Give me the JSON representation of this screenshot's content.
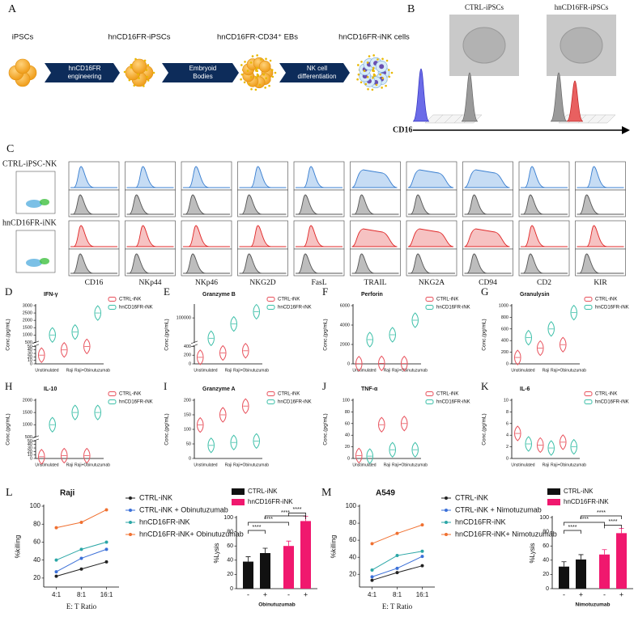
{
  "figure": {
    "A": {
      "label": "A",
      "stages": [
        "iPSCs",
        "hnCD16FR-iPSCs",
        "hnCD16FR-CD34⁺ EBs",
        "hnCD16FR-iNK cells"
      ],
      "steps": [
        [
          "hnCD16FR",
          "engineering"
        ],
        [
          "Embryoid",
          "Bodies"
        ],
        [
          "NK cell",
          "differentiation"
        ]
      ]
    },
    "B": {
      "label": "B",
      "images": [
        "CTRL-iPSCs",
        "hnCD16FR-iPSCs"
      ],
      "axis": "CD16"
    },
    "C": {
      "label": "C",
      "rows": [
        "CTRL-iPSC-NK",
        "hnCD16FR-iNK"
      ],
      "markers": [
        "CD16",
        "NKp44",
        "NKp46",
        "NKG2D",
        "FasL",
        "TRAIL",
        "NKG2A",
        "CD94",
        "CD2",
        "KIR"
      ]
    }
  },
  "chart_data": [
    {
      "type": "violin",
      "label": "D",
      "title": "IFN-γ",
      "ylabel": "Conc.(pg/mL)",
      "categories": [
        "Unstimulated",
        "Raji",
        "Raji+Obinutuzumab"
      ],
      "series": [
        {
          "name": "CTRL-iNK",
          "color": "#e8505b",
          "values": [
            25,
            40,
            50
          ]
        },
        {
          "name": "hnCD16FR-iNK",
          "color": "#3cbfa8",
          "values": [
            1000,
            1200,
            2500
          ]
        }
      ],
      "ylim": [
        0,
        3000
      ],
      "ybreak": [
        50,
        500
      ],
      "yticks": [
        0,
        10,
        20,
        30,
        40,
        50,
        500,
        1000,
        1500,
        2000,
        2500,
        3000
      ]
    },
    {
      "type": "violin",
      "label": "E",
      "title": "Granzyme B",
      "ylabel": "Conc.(pg/mL)",
      "categories": [
        "Unstimulated",
        "Raji",
        "Raji+Obinutuzumab"
      ],
      "series": [
        {
          "name": "CTRL-iNK",
          "color": "#e8505b",
          "values": [
            150,
            250,
            300
          ]
        },
        {
          "name": "hnCD16FR-iNK",
          "color": "#3cbfa8",
          "values": [
            50000,
            85000,
            115000
          ]
        }
      ],
      "ylim": [
        0,
        130000
      ],
      "ybreak": [
        400,
        40000
      ],
      "yticks": [
        0,
        200,
        400,
        100000
      ]
    },
    {
      "type": "violin",
      "label": "F",
      "title": "Perforin",
      "ylabel": "Conc.(pg/mL)",
      "categories": [
        "Unstimulated",
        "Raji",
        "Raji+Obinutuzumab"
      ],
      "series": [
        {
          "name": "CTRL-iNK",
          "color": "#e8505b",
          "values": [
            20,
            50,
            30
          ]
        },
        {
          "name": "hnCD16FR-iNK",
          "color": "#3cbfa8",
          "values": [
            2500,
            3000,
            4500
          ]
        }
      ],
      "ylim": [
        0,
        6000
      ],
      "yticks": [
        0,
        2000,
        4000,
        6000
      ]
    },
    {
      "type": "violin",
      "label": "G",
      "title": "Granulysin",
      "ylabel": "Conc.(pg/mL)",
      "categories": [
        "Unstimulated",
        "Raji",
        "Raji+Obinutuzumab"
      ],
      "series": [
        {
          "name": "CTRL-iNK",
          "color": "#e8505b",
          "values": [
            110,
            270,
            330
          ]
        },
        {
          "name": "hnCD16FR-iNK",
          "color": "#3cbfa8",
          "values": [
            450,
            600,
            880
          ]
        }
      ],
      "ylim": [
        0,
        1000
      ],
      "yticks": [
        0,
        200,
        400,
        600,
        800,
        1000
      ]
    },
    {
      "type": "violin",
      "label": "H",
      "title": "IL-10",
      "ylabel": "Conc.(pg/mL)",
      "categories": [
        "Unstimulated",
        "Raji",
        "Raji+Obinutuzumab"
      ],
      "series": [
        {
          "name": "CTRL-iNK",
          "color": "#e8505b",
          "values": [
            5,
            8,
            8
          ]
        },
        {
          "name": "hnCD16FR-iNK",
          "color": "#3cbfa8",
          "values": [
            1000,
            1500,
            1500
          ]
        }
      ],
      "ylim": [
        0,
        2000
      ],
      "ybreak": [
        50,
        500
      ],
      "yticks": [
        0,
        10,
        20,
        30,
        40,
        50,
        500,
        1000,
        1500,
        2000
      ]
    },
    {
      "type": "violin",
      "label": "I",
      "title": "Granzyme A",
      "ylabel": "Conc.(pg/mL)",
      "categories": [
        "Unstimulated",
        "Raji",
        "Raji+Obinutuzumab"
      ],
      "series": [
        {
          "name": "CTRL-iNK",
          "color": "#e8505b",
          "values": [
            115,
            150,
            180
          ]
        },
        {
          "name": "hnCD16FR-iNK",
          "color": "#3cbfa8",
          "values": [
            45,
            55,
            60
          ]
        }
      ],
      "ylim": [
        0,
        200
      ],
      "yticks": [
        0,
        50,
        100,
        150,
        200
      ]
    },
    {
      "type": "violin",
      "label": "J",
      "title": "TNF-α",
      "ylabel": "Conc.(pg/mL)",
      "categories": [
        "Unstimulated",
        "Raji",
        "Raji+Obinutuzumab"
      ],
      "series": [
        {
          "name": "CTRL-iNK",
          "color": "#e8505b",
          "values": [
            5,
            58,
            60
          ]
        },
        {
          "name": "hnCD16FR-iNK",
          "color": "#3cbfa8",
          "values": [
            4,
            15,
            15
          ]
        }
      ],
      "ylim": [
        0,
        100
      ],
      "yticks": [
        0,
        20,
        40,
        60,
        80,
        100
      ]
    },
    {
      "type": "violin",
      "label": "K",
      "title": "IL-6",
      "ylabel": "Conc.(pg/mL)",
      "categories": [
        "Unstimulated",
        "Raji",
        "Raji+Obinutuzumab"
      ],
      "series": [
        {
          "name": "CTRL-iNK",
          "color": "#e8505b",
          "values": [
            4.3,
            2.3,
            2.8
          ]
        },
        {
          "name": "hnCD16FR-iNK",
          "color": "#3cbfa8",
          "values": [
            2.5,
            1.8,
            2.0
          ]
        }
      ],
      "ylim": [
        0,
        10
      ],
      "yticks": [
        0,
        2,
        4,
        6,
        8,
        10
      ]
    },
    {
      "type": "line",
      "label": "L",
      "title": "Raji",
      "xlabel": "E: T Ratio",
      "ylabel": "%killing",
      "categories": [
        "4:1",
        "8:1",
        "16:1"
      ],
      "series": [
        {
          "name": "CTRL-iNK",
          "color": "#222222",
          "values": [
            22,
            30,
            38
          ]
        },
        {
          "name": "CTRL-iNK + Obinutuzumab",
          "color": "#3a6fd8",
          "values": [
            27,
            42,
            52
          ]
        },
        {
          "name": "hnCD16FR-iNK",
          "color": "#2aa6a6",
          "values": [
            40,
            52,
            60
          ]
        },
        {
          "name": "hnCD16FR-iNK+ Obinutuzumab",
          "color": "#f07030",
          "values": [
            76,
            82,
            96
          ]
        }
      ],
      "ylim": [
        10,
        100
      ],
      "yticks": [
        20,
        40,
        60,
        80,
        100
      ]
    },
    {
      "type": "bar",
      "ylabel": "%Lysis",
      "xlabel": "Obinutuzumab",
      "categories": [
        "-",
        "+"
      ],
      "series": [
        {
          "name": "CTRL-iNK",
          "color": "#111111",
          "values": [
            38,
            50
          ]
        },
        {
          "name": "hnCD16FR-iNK",
          "color": "#f0186e",
          "values": [
            60,
            95
          ]
        }
      ],
      "ylim": [
        0,
        100
      ],
      "yticks": [
        0,
        20,
        40,
        60,
        80,
        100
      ],
      "annotations": [
        "****",
        "****",
        "****",
        "****"
      ]
    },
    {
      "type": "line",
      "label": "M",
      "title": "A549",
      "xlabel": "E: T Ratio",
      "ylabel": "%killing",
      "categories": [
        "4:1",
        "8:1",
        "16:1"
      ],
      "series": [
        {
          "name": "CTRL-iNK",
          "color": "#222222",
          "values": [
            13,
            22,
            30
          ]
        },
        {
          "name": "CTRL-iNK + Nimotuzumab",
          "color": "#3a6fd8",
          "values": [
            17,
            27,
            41
          ]
        },
        {
          "name": "hnCD16FR-iNK",
          "color": "#2aa6a6",
          "values": [
            25,
            42,
            47
          ]
        },
        {
          "name": "hnCD16FR-iNK+ Nimotuzumab",
          "color": "#f07030",
          "values": [
            56,
            68,
            78
          ]
        }
      ],
      "ylim": [
        5,
        100
      ],
      "yticks": [
        20,
        40,
        60,
        80,
        100
      ]
    },
    {
      "type": "bar",
      "ylabel": "%Lysis",
      "xlabel": "Nimotuzumab",
      "categories": [
        "-",
        "+"
      ],
      "series": [
        {
          "name": "CTRL-iNK",
          "color": "#111111",
          "values": [
            31,
            41
          ]
        },
        {
          "name": "hnCD16FR-iNK",
          "color": "#f0186e",
          "values": [
            48,
            78
          ]
        }
      ],
      "ylim": [
        0,
        100
      ],
      "yticks": [
        0,
        20,
        40,
        60,
        80,
        100
      ],
      "annotations": [
        "****",
        "****",
        "****",
        "****"
      ]
    }
  ]
}
